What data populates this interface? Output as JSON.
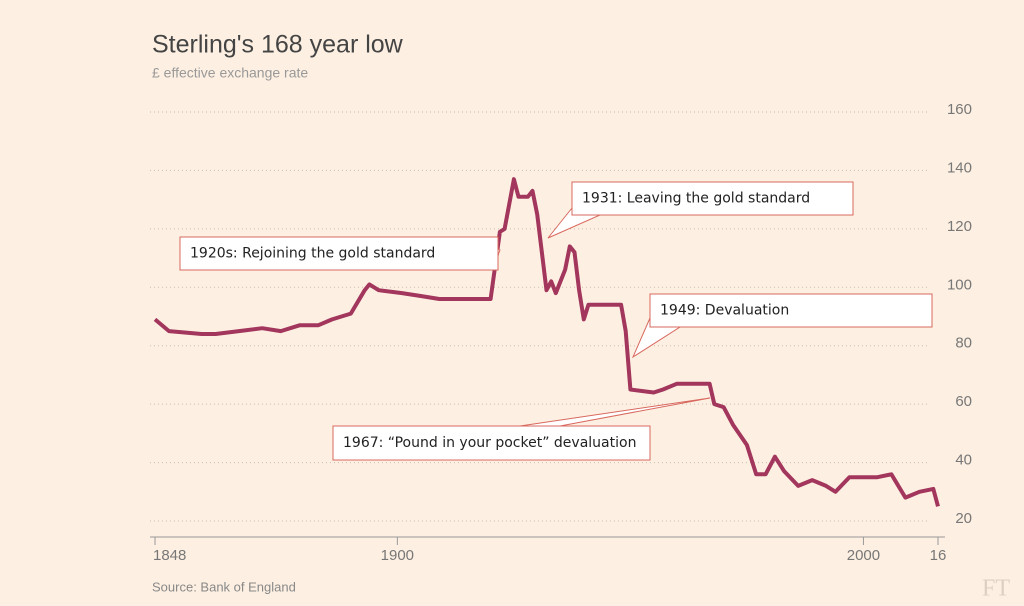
{
  "chart_data": {
    "type": "line",
    "title": "Sterling's 168 year low",
    "subtitle": "£ effective exchange rate",
    "source": "Source: Bank of England",
    "logo": "FT",
    "color": "#a3365c",
    "grid": true,
    "x": [
      1848,
      1851,
      1858,
      1861,
      1866,
      1871,
      1875,
      1879,
      1883,
      1886,
      1890,
      1893,
      1894,
      1896,
      1901,
      1905,
      1909,
      1916,
      1920,
      1922,
      1923,
      1925,
      1926,
      1928,
      1929,
      1930,
      1932,
      1933,
      1934,
      1936,
      1937,
      1938,
      1939,
      1940,
      1941,
      1948,
      1949,
      1950,
      1955,
      1957,
      1960,
      1965,
      1967,
      1968,
      1970,
      1972,
      1975,
      1977,
      1979,
      1981,
      1983,
      1986,
      1989,
      1992,
      1994,
      1997,
      1999,
      2003,
      2006,
      2009,
      2012,
      2015,
      2016
    ],
    "values": [
      89,
      85,
      84,
      84,
      85,
      86,
      85,
      87,
      87,
      89,
      91,
      99,
      101,
      99,
      98,
      97,
      96,
      96,
      96,
      119,
      120,
      137,
      131,
      131,
      133,
      125,
      99,
      102,
      98,
      106,
      114,
      112,
      99,
      89,
      94,
      94,
      85,
      65,
      64,
      65,
      67,
      67,
      67,
      60,
      59,
      53,
      46,
      36,
      36,
      42,
      37,
      32,
      34,
      32,
      30,
      35,
      35,
      35,
      36,
      28,
      30,
      31,
      25
    ],
    "xlim": [
      1848,
      2016
    ],
    "xticks": [
      1848,
      1900,
      2000,
      {
        "value": 2016,
        "label": "16"
      }
    ],
    "ylim": [
      20,
      160
    ],
    "yticks": [
      20,
      40,
      60,
      80,
      100,
      120,
      140,
      160
    ],
    "annotations": [
      "1931: Leaving the gold standard",
      "1920s: Rejoining the gold standard",
      "1949: Devaluation",
      "1967: “Pound in your pocket” devaluation"
    ]
  }
}
